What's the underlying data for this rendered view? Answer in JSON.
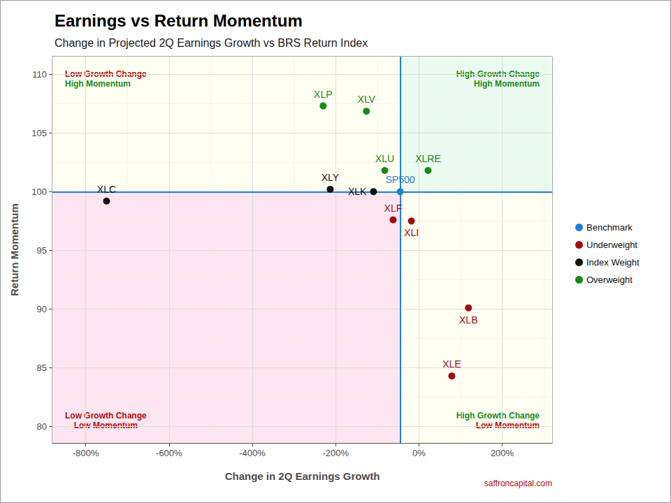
{
  "chart_data": {
    "type": "scatter",
    "title": "Earnings vs Return Momentum",
    "subtitle": "Change in Projected 2Q Earnings Growth vs BRS Return Index",
    "x_label": "Change in 2Q Earnings Growth",
    "y_label": "Return Momentum",
    "xlim": [
      -880,
      320
    ],
    "xticks": [
      {
        "value": -800,
        "label": "-800%"
      },
      {
        "value": -600,
        "label": "-600%"
      },
      {
        "value": -400,
        "label": "-400%"
      },
      {
        "value": -200,
        "label": "-200%"
      },
      {
        "value": 0,
        "label": "0%"
      },
      {
        "value": 200,
        "label": "200%"
      }
    ],
    "ylim": [
      78.6,
      111.5
    ],
    "yticks": [
      80,
      85,
      90,
      95,
      100,
      105,
      110
    ],
    "grid": true,
    "legend": "right",
    "series": [
      {
        "name": "Benchmark",
        "color": "#1f7fd6",
        "labels": [
          "SP500"
        ],
        "x": [
          -45
        ],
        "values": [
          100.0
        ]
      },
      {
        "name": "Underweight",
        "color": "#a00d0d",
        "labels": [
          "XLF",
          "XLI",
          "XLB",
          "XLE"
        ],
        "x": [
          -62,
          -18,
          119,
          79
        ],
        "values": [
          97.6,
          97.5,
          90.1,
          84.3
        ]
      },
      {
        "name": "Index Weight",
        "color": "#111111",
        "labels": [
          "XLY",
          "XLK",
          "XLC"
        ],
        "x": [
          -213,
          -109,
          -750
        ],
        "values": [
          100.2,
          100.0,
          99.2
        ]
      },
      {
        "name": "Overweight",
        "color": "#178a17",
        "labels": [
          "XLP",
          "XLV",
          "XLU",
          "XLRE"
        ],
        "x": [
          -230,
          -126,
          -82,
          22
        ],
        "values": [
          107.3,
          106.85,
          101.8,
          101.8
        ]
      }
    ],
    "reference_lines": {
      "x": -45,
      "y": 100,
      "color": "#1f7fd6"
    },
    "quadrants": [
      {
        "position": "top-left",
        "text": [
          "Low Growth Change",
          "High Momentum"
        ],
        "text_colors": [
          "#b50d0d",
          "#1a8a1a"
        ],
        "color": "#fffff2"
      },
      {
        "position": "top-right",
        "text": [
          "High Growth Change",
          "High Momentum"
        ],
        "text_colors": [
          "#1a8a1a",
          "#1a8a1a"
        ],
        "color": "#ebfaf0"
      },
      {
        "position": "bottom-left",
        "text": [
          "Low Growth Change",
          "Low Momentum"
        ],
        "text_colors": [
          "#b50d0d",
          "#b50d0d"
        ],
        "color": "#fde6f1"
      },
      {
        "position": "bottom-right",
        "text": [
          "High Growth Change",
          "Low Momentum"
        ],
        "text_colors": [
          "#1a8a1a",
          "#b50d0d"
        ],
        "color": "#fffff2"
      }
    ],
    "source": {
      "text": "saffroncapital.com",
      "color": "#b50d0d"
    }
  }
}
